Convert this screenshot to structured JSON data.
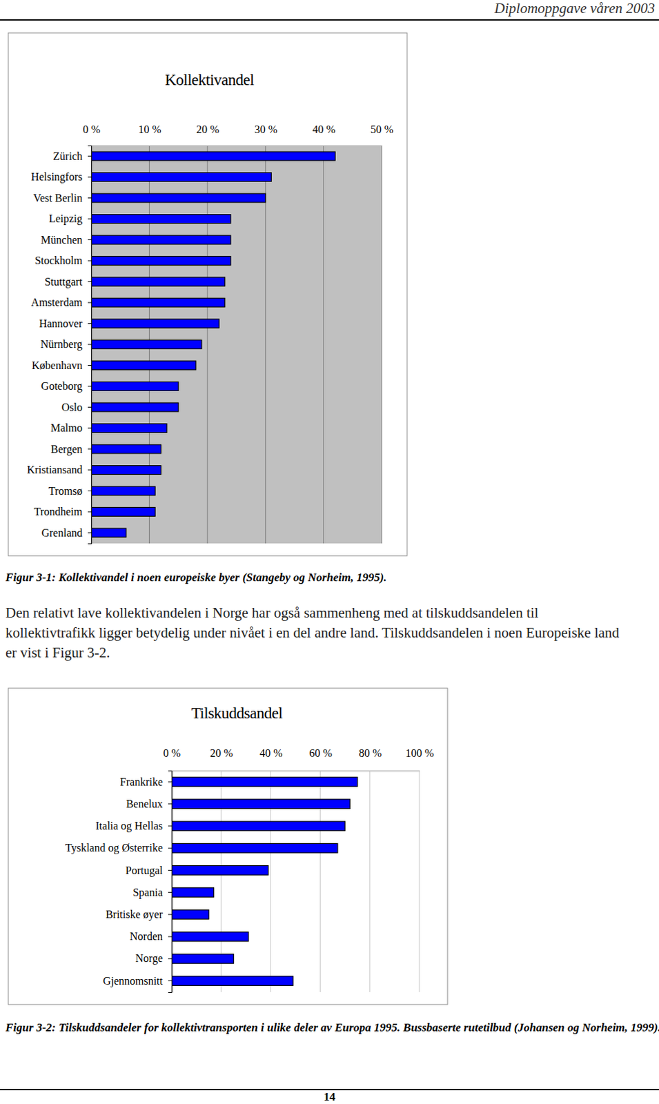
{
  "document": {
    "header": "Diplomoppgave våren 2003",
    "captions": [
      "Figur 3-1: Kollektivandel i noen europeiske byer (Stangeby og Norheim, 1995).",
      "Figur 3-2: Tilskuddsandeler for kollektivtransporten i ulike deler av Europa 1995. Bussbaserte rutetilbud (Johansen og Norheim, 1999)."
    ],
    "paragraph": "Den relativt lave kollektivandelen i Norge har også sammenheng med at tilskuddsandelen til kollektivtrafikk ligger betydelig under nivået i en del andre land. Tilskuddsandelen i noen Europeiske land er vist i Figur 3-2.",
    "page_number": 14
  },
  "chart_data": [
    {
      "type": "bar",
      "title": "Kollektivandel",
      "orientation": "horizontal",
      "color": "#0000ff",
      "grid": true,
      "categories": [
        "Zürich",
        "Helsingfors",
        "Vest Berlin",
        "Leipzig",
        "München",
        "Stockholm",
        "Stuttgart",
        "Amsterdam",
        "Hannover",
        "Nürnberg",
        "København",
        "Goteborg",
        "Oslo",
        "Malmo",
        "Bergen",
        "Kristiansand",
        "Tromsø",
        "Trondheim",
        "Grenland"
      ],
      "values": [
        42,
        31,
        30,
        24,
        24,
        24,
        23,
        23,
        22,
        19,
        18,
        15,
        15,
        13,
        12,
        12,
        11,
        11,
        6
      ],
      "xlim": [
        0,
        50
      ],
      "xticks": [
        {
          "value": 0,
          "label": "0 %"
        },
        {
          "value": 10,
          "label": "10 %"
        },
        {
          "value": 20,
          "label": "20 %"
        },
        {
          "value": 30,
          "label": "30 %"
        },
        {
          "value": 40,
          "label": "40 %"
        },
        {
          "value": 50,
          "label": "50 %"
        }
      ]
    },
    {
      "type": "bar",
      "title": "Tilskuddsandel",
      "orientation": "horizontal",
      "color": "#0000ff",
      "grid": true,
      "categories": [
        "Frankrike",
        "Benelux",
        "Italia og Hellas",
        "Tyskland og Østerrike",
        "Portugal",
        "Spania",
        "Britiske øyer",
        "Norden",
        "Norge",
        "Gjennomsnitt"
      ],
      "values": [
        75,
        72,
        70,
        67,
        39,
        17,
        15,
        31,
        25,
        49
      ],
      "xlim": [
        0,
        100
      ],
      "xticks": [
        {
          "value": 0,
          "label": "0 %"
        },
        {
          "value": 20,
          "label": "20 %"
        },
        {
          "value": 40,
          "label": "40 %"
        },
        {
          "value": 60,
          "label": "60 %"
        },
        {
          "value": 80,
          "label": "80 %"
        },
        {
          "value": 100,
          "label": "100 %"
        }
      ]
    }
  ]
}
